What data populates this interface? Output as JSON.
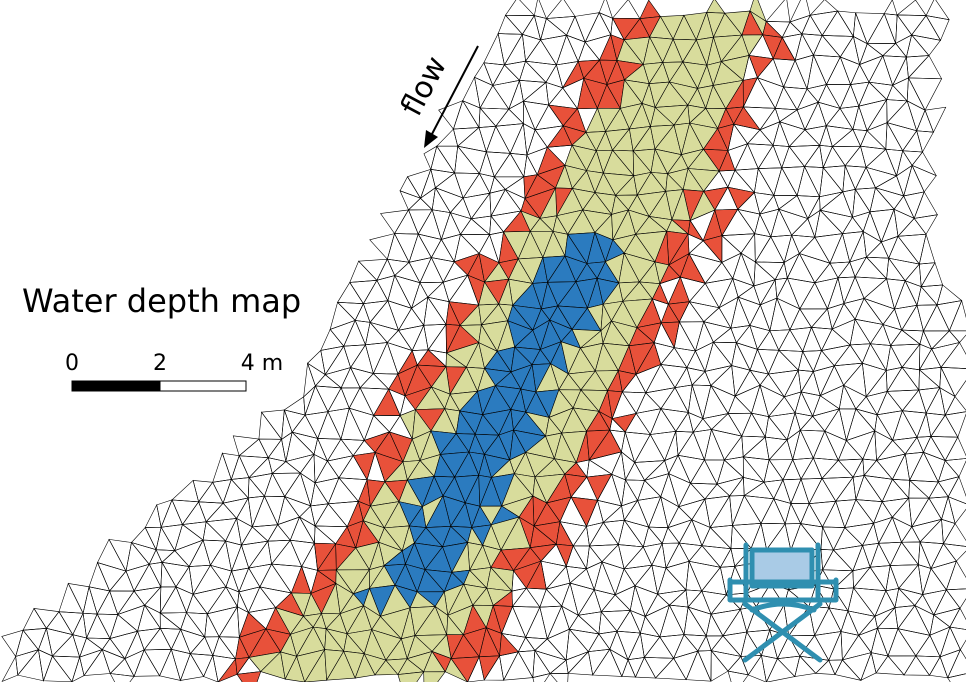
{
  "map": {
    "flow_label": "flow",
    "title": "Water depth map",
    "scale_labels": [
      "0",
      "2",
      "4 m"
    ]
  }
}
